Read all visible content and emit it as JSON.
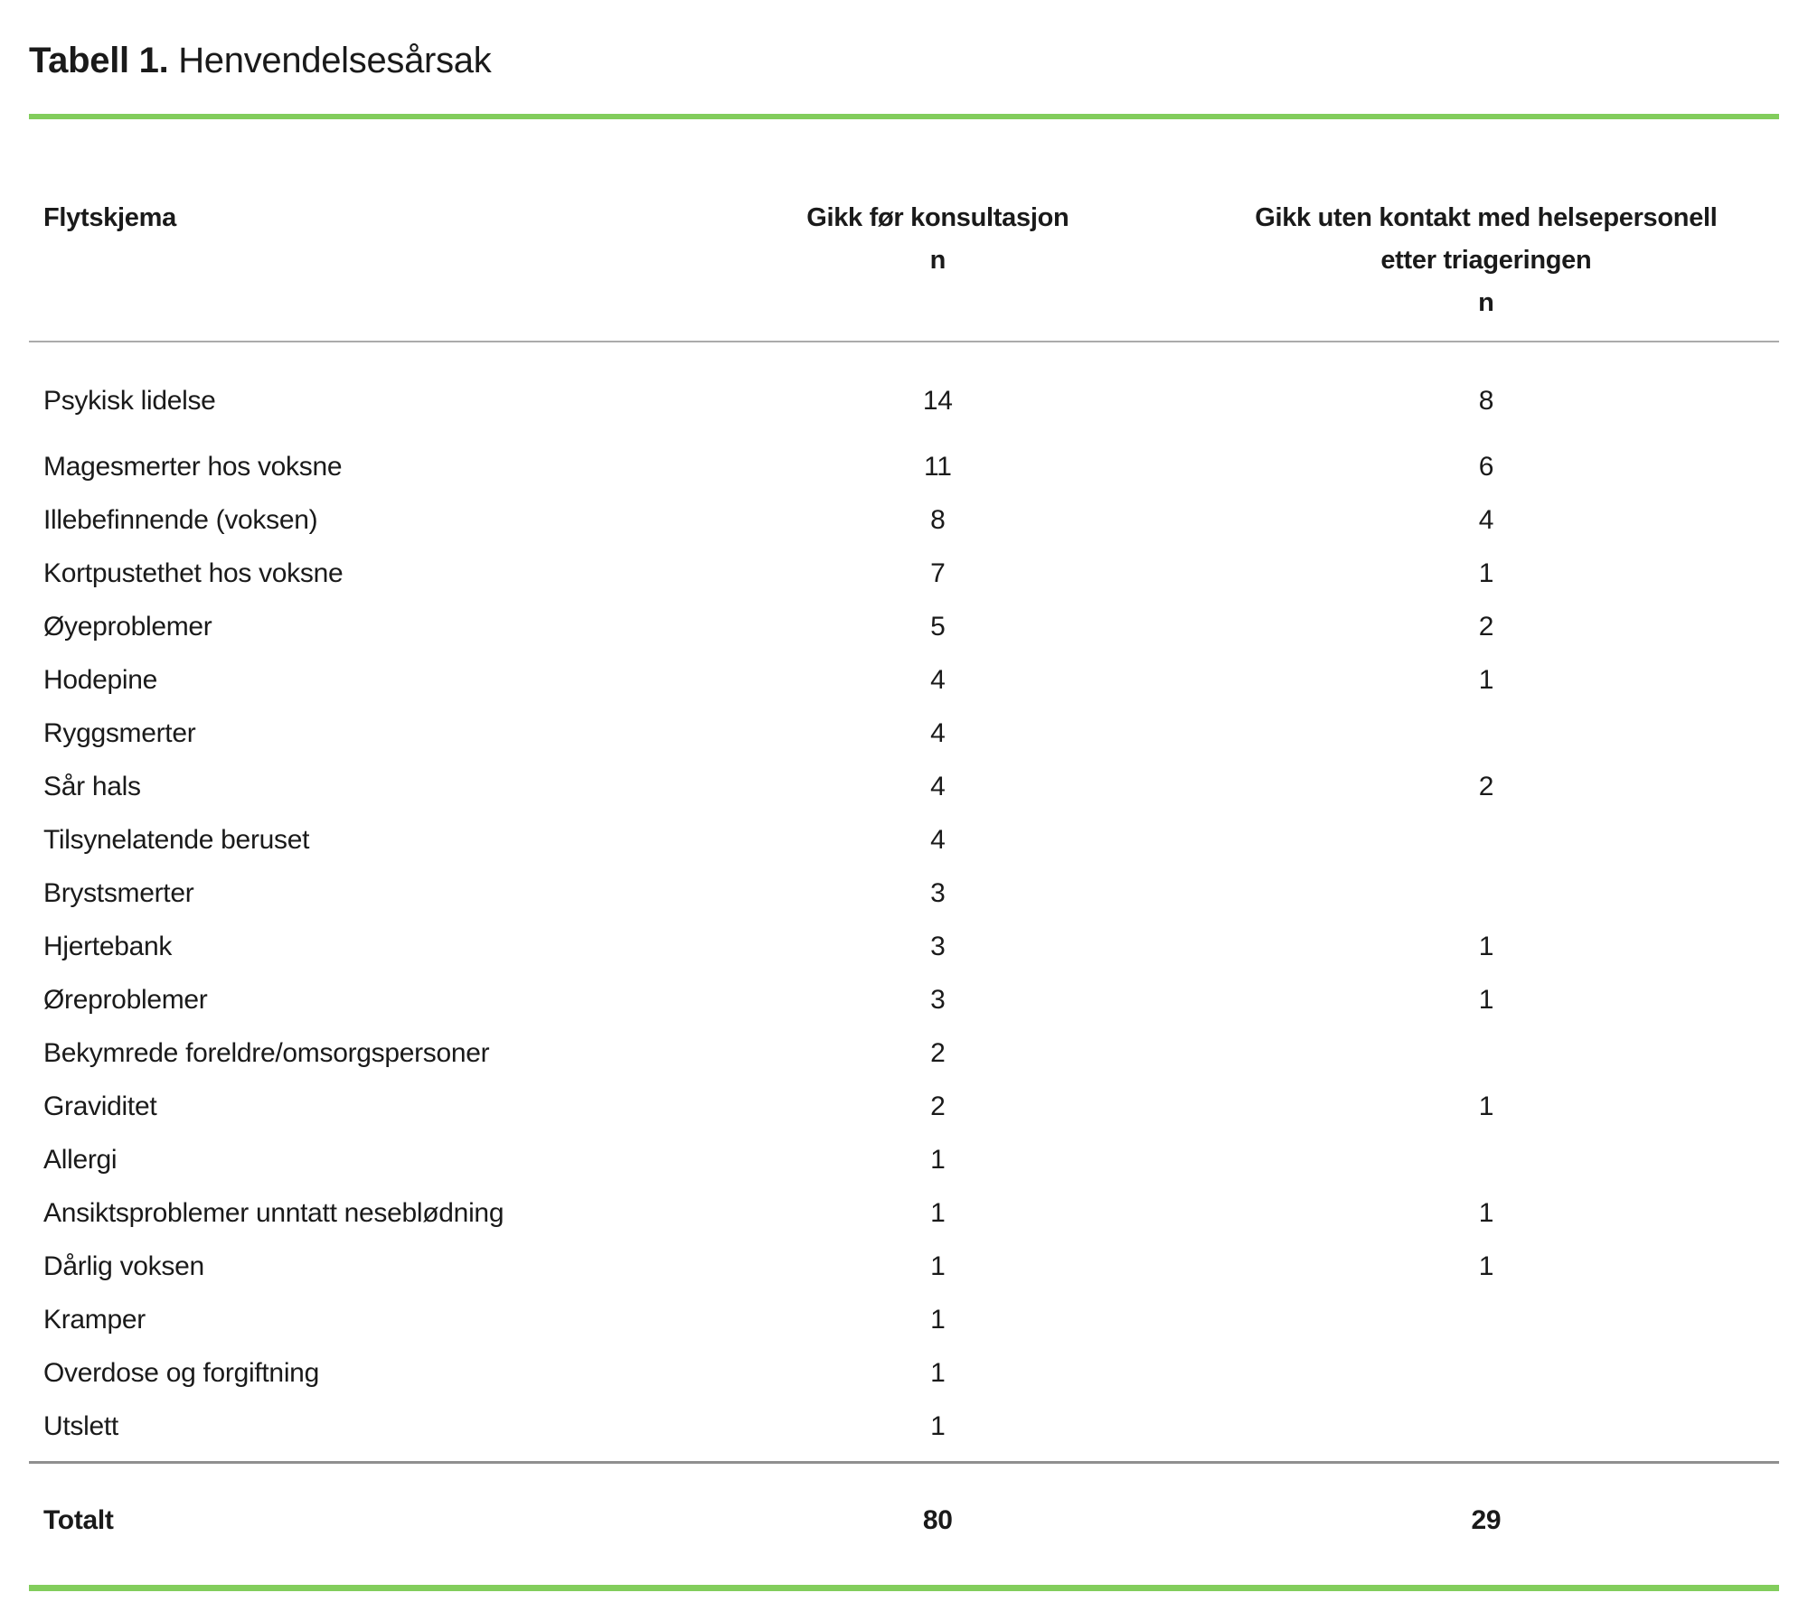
{
  "page": {
    "title_bold": "Tabell 1.",
    "title_rest": "Henvendelsesårsak"
  },
  "colors": {
    "accent_green": "#82cd5c",
    "divider_gray": "#ababab",
    "text": "#1a1a1a"
  },
  "table": {
    "columns": [
      {
        "label": "Flytskjema"
      },
      {
        "lines": [
          "Gikk før konsultasjon",
          "n"
        ]
      },
      {
        "lines": [
          "Gikk uten kontakt med helsepersonell",
          "etter triageringen",
          "n"
        ]
      }
    ],
    "rows": [
      {
        "label": "Psykisk lidelse",
        "went_before_n": "14",
        "went_without_n": "8"
      },
      {
        "label": "Magesmerter hos voksne",
        "went_before_n": "11",
        "went_without_n": "6"
      },
      {
        "label": "Illebefinnende (voksen)",
        "went_before_n": "8",
        "went_without_n": "4"
      },
      {
        "label": "Kortpustethet hos voksne",
        "went_before_n": "7",
        "went_without_n": "1"
      },
      {
        "label": "Øyeproblemer",
        "went_before_n": "5",
        "went_without_n": "2"
      },
      {
        "label": "Hodepine",
        "went_before_n": "4",
        "went_without_n": "1"
      },
      {
        "label": "Ryggsmerter",
        "went_before_n": "4",
        "went_without_n": ""
      },
      {
        "label": "Sår hals",
        "went_before_n": "4",
        "went_without_n": "2"
      },
      {
        "label": "Tilsynelatende beruset",
        "went_before_n": "4",
        "went_without_n": ""
      },
      {
        "label": "Brystsmerter",
        "went_before_n": "3",
        "went_without_n": ""
      },
      {
        "label": "Hjertebank",
        "went_before_n": "3",
        "went_without_n": "1"
      },
      {
        "label": "Øreproblemer",
        "went_before_n": "3",
        "went_without_n": "1"
      },
      {
        "label": "Bekymrede foreldre/omsorgspersoner",
        "went_before_n": "2",
        "went_without_n": ""
      },
      {
        "label": "Graviditet",
        "went_before_n": "2",
        "went_without_n": "1"
      },
      {
        "label": "Allergi",
        "went_before_n": "1",
        "went_without_n": ""
      },
      {
        "label": "Ansiktsproblemer unntatt neseblødning",
        "went_before_n": "1",
        "went_without_n": "1"
      },
      {
        "label": "Dårlig voksen",
        "went_before_n": "1",
        "went_without_n": "1"
      },
      {
        "label": "Kramper",
        "went_before_n": "1",
        "went_without_n": ""
      },
      {
        "label": "Overdose og forgiftning",
        "went_before_n": "1",
        "went_without_n": ""
      },
      {
        "label": "Utslett",
        "went_before_n": "1",
        "went_without_n": ""
      }
    ],
    "total": {
      "label": "Totalt",
      "went_before_n": "80",
      "went_without_n": "29"
    }
  }
}
